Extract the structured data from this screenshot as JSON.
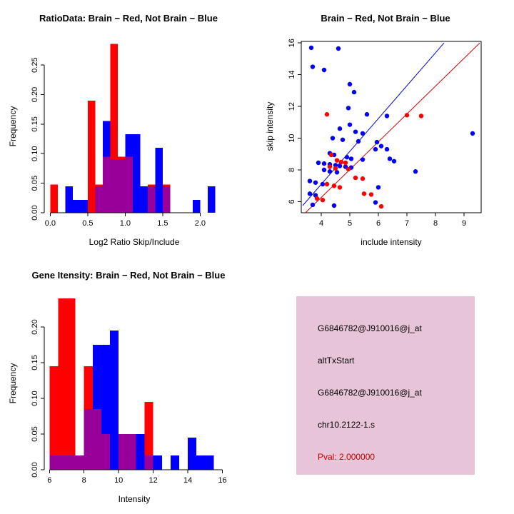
{
  "figure": {
    "background": "#ffffff",
    "colors": {
      "red": "#FF0000",
      "blue": "#0000FF",
      "overlap": "#990099"
    }
  },
  "chart_data": [
    {
      "type": "bar",
      "title": "RatioData: Brain − Red, Not Brain − Blue",
      "xlabel": "Log2 Ratio Skip/Include",
      "ylabel": "Frequency",
      "xlim": [
        -0.08,
        2.32
      ],
      "ylim": [
        0,
        0.29
      ],
      "bin_width": 0.1,
      "grid": false,
      "legend": "none",
      "colors": {
        "red": "#FF0000",
        "blue": "#0000FF",
        "overlap": "#990099"
      },
      "xticks": [
        {
          "v": 0.0,
          "t": "0.0"
        },
        {
          "v": 0.5,
          "t": "0.5"
        },
        {
          "v": 1.0,
          "t": "1.0"
        },
        {
          "v": 1.5,
          "t": "1.5"
        },
        {
          "v": 2.0,
          "t": "2.0"
        }
      ],
      "yticks": [
        {
          "v": 0.0,
          "t": "0.00"
        },
        {
          "v": 0.05,
          "t": "0.05"
        },
        {
          "v": 0.1,
          "t": "0.10"
        },
        {
          "v": 0.15,
          "t": "0.15"
        },
        {
          "v": 0.2,
          "t": "0.20"
        },
        {
          "v": 0.25,
          "t": "0.25"
        }
      ],
      "series_names": [
        "Brain (red)",
        "Not Brain (blue)"
      ],
      "bins": [
        {
          "x0": 0.0,
          "red": 0.048,
          "blue": 0
        },
        {
          "x0": 0.2,
          "red": 0,
          "blue": 0.045
        },
        {
          "x0": 0.3,
          "red": 0,
          "blue": 0.022
        },
        {
          "x0": 0.4,
          "red": 0,
          "blue": 0.022
        },
        {
          "x0": 0.5,
          "red": 0.19,
          "blue": 0
        },
        {
          "x0": 0.6,
          "red": 0.048,
          "blue": 0.045
        },
        {
          "x0": 0.7,
          "red": 0.095,
          "blue": 0.155
        },
        {
          "x0": 0.8,
          "red": 0.286,
          "blue": 0.09
        },
        {
          "x0": 0.9,
          "red": 0.095,
          "blue": 0.09
        },
        {
          "x0": 1.0,
          "red": 0.095,
          "blue": 0.133
        },
        {
          "x0": 1.1,
          "red": 0,
          "blue": 0.133
        },
        {
          "x0": 1.2,
          "red": 0,
          "blue": 0.045
        },
        {
          "x0": 1.3,
          "red": 0.048,
          "blue": 0.045
        },
        {
          "x0": 1.4,
          "red": 0,
          "blue": 0.11
        },
        {
          "x0": 1.5,
          "red": 0.048,
          "blue": 0.045
        },
        {
          "x0": 1.9,
          "red": 0,
          "blue": 0.022
        },
        {
          "x0": 2.1,
          "red": 0,
          "blue": 0.045
        }
      ]
    },
    {
      "type": "scatter",
      "title": "Brain − Red, Not Brain − Blue",
      "xlabel": "include intensity",
      "ylabel": "skip intensity",
      "xlim": [
        3.3,
        9.6
      ],
      "ylim": [
        5.3,
        16.1
      ],
      "grid": false,
      "legend": "none",
      "box": true,
      "xticks": [
        {
          "v": 4,
          "t": "4"
        },
        {
          "v": 5,
          "t": "5"
        },
        {
          "v": 6,
          "t": "6"
        },
        {
          "v": 7,
          "t": "7"
        },
        {
          "v": 8,
          "t": "8"
        },
        {
          "v": 9,
          "t": "9"
        }
      ],
      "yticks": [
        {
          "v": 6,
          "t": "6"
        },
        {
          "v": 8,
          "t": "8"
        },
        {
          "v": 10,
          "t": "10"
        },
        {
          "v": 12,
          "t": "12"
        },
        {
          "v": 14,
          "t": "14"
        },
        {
          "v": 16,
          "t": "16"
        }
      ],
      "series": [
        {
          "name": "Not Brain (blue)",
          "color": "#0000FF",
          "points": [
            [
              3.65,
              15.7
            ],
            [
              4.6,
              15.65
            ],
            [
              3.7,
              14.5
            ],
            [
              4.1,
              14.3
            ],
            [
              5.0,
              13.4
            ],
            [
              5.15,
              12.9
            ],
            [
              4.95,
              11.9
            ],
            [
              5.6,
              11.5
            ],
            [
              6.3,
              11.4
            ],
            [
              5.0,
              10.85
            ],
            [
              4.65,
              10.6
            ],
            [
              5.2,
              10.4
            ],
            [
              5.45,
              10.3
            ],
            [
              9.3,
              10.3
            ],
            [
              4.4,
              10.0
            ],
            [
              4.75,
              9.9
            ],
            [
              5.3,
              9.8
            ],
            [
              5.95,
              9.75
            ],
            [
              6.1,
              9.5
            ],
            [
              5.9,
              9.3
            ],
            [
              6.3,
              9.3
            ],
            [
              4.3,
              9.05
            ],
            [
              4.45,
              8.95
            ],
            [
              4.9,
              8.8
            ],
            [
              5.05,
              8.7
            ],
            [
              5.45,
              8.65
            ],
            [
              6.4,
              8.7
            ],
            [
              6.55,
              8.55
            ],
            [
              3.9,
              8.45
            ],
            [
              4.1,
              8.4
            ],
            [
              4.3,
              8.35
            ],
            [
              4.5,
              8.3
            ],
            [
              4.65,
              8.25
            ],
            [
              4.85,
              8.2
            ],
            [
              5.05,
              8.15
            ],
            [
              4.1,
              8.0
            ],
            [
              4.3,
              7.9
            ],
            [
              4.55,
              7.85
            ],
            [
              7.3,
              7.9
            ],
            [
              3.6,
              7.3
            ],
            [
              3.8,
              7.2
            ],
            [
              4.05,
              7.1
            ],
            [
              6.0,
              6.9
            ],
            [
              3.6,
              6.5
            ],
            [
              3.8,
              6.4
            ],
            [
              5.9,
              5.95
            ],
            [
              3.7,
              5.8
            ],
            [
              4.45,
              5.75
            ]
          ]
        },
        {
          "name": "Brain (red)",
          "color": "#FF0000",
          "points": [
            [
              4.2,
              11.5
            ],
            [
              7.0,
              11.45
            ],
            [
              7.5,
              11.4
            ],
            [
              4.35,
              8.95
            ],
            [
              4.55,
              8.6
            ],
            [
              4.7,
              8.5
            ],
            [
              4.85,
              8.45
            ],
            [
              4.3,
              8.2
            ],
            [
              4.5,
              8.1
            ],
            [
              4.95,
              8.05
            ],
            [
              5.2,
              7.5
            ],
            [
              5.45,
              7.45
            ],
            [
              4.2,
              7.1
            ],
            [
              4.45,
              7.0
            ],
            [
              4.65,
              6.9
            ],
            [
              5.5,
              6.5
            ],
            [
              5.75,
              6.45
            ],
            [
              3.85,
              6.2
            ],
            [
              4.05,
              6.1
            ],
            [
              6.1,
              5.7
            ]
          ]
        }
      ],
      "lines": [
        {
          "name": "not-brain-fit-line",
          "color": "#0000CD",
          "x1": 3.35,
          "y1": 5.75,
          "x2": 8.3,
          "y2": 16.0
        },
        {
          "name": "brain-fit-line",
          "color": "#CD0000",
          "x1": 3.45,
          "y1": 5.3,
          "x2": 9.55,
          "y2": 16.0
        }
      ]
    },
    {
      "type": "bar",
      "title": "Gene Itensity: Brain − Red, Not Brain − Blue",
      "xlabel": "Intensity",
      "ylabel": "Frequency",
      "xlim": [
        5.7,
        16.1
      ],
      "ylim": [
        0,
        0.24
      ],
      "bin_width": 0.5,
      "grid": false,
      "legend": "none",
      "colors": {
        "red": "#FF0000",
        "blue": "#0000FF",
        "overlap": "#990099"
      },
      "xticks": [
        {
          "v": 6,
          "t": "6"
        },
        {
          "v": 8,
          "t": "8"
        },
        {
          "v": 10,
          "t": "10"
        },
        {
          "v": 12,
          "t": "12"
        },
        {
          "v": 14,
          "t": "14"
        },
        {
          "v": 16,
          "t": "16"
        }
      ],
      "yticks": [
        {
          "v": 0.0,
          "t": "0.00"
        },
        {
          "v": 0.05,
          "t": "0.05"
        },
        {
          "v": 0.1,
          "t": "0.10"
        },
        {
          "v": 0.15,
          "t": "0.15"
        },
        {
          "v": 0.2,
          "t": "0.20"
        }
      ],
      "series_names": [
        "Brain (red)",
        "Not Brain (blue)"
      ],
      "bins": [
        {
          "x0": 6.0,
          "red": 0.145,
          "blue": 0.02
        },
        {
          "x0": 6.5,
          "red": 0.24,
          "blue": 0.02
        },
        {
          "x0": 7.0,
          "red": 0.24,
          "blue": 0.02
        },
        {
          "x0": 7.5,
          "red": 0.02,
          "blue": 0.02
        },
        {
          "x0": 8.0,
          "red": 0.145,
          "blue": 0.085
        },
        {
          "x0": 8.5,
          "red": 0.085,
          "blue": 0.175
        },
        {
          "x0": 9.0,
          "red": 0.05,
          "blue": 0.175
        },
        {
          "x0": 9.5,
          "red": 0,
          "blue": 0.195
        },
        {
          "x0": 10.0,
          "red": 0.05,
          "blue": 0.05
        },
        {
          "x0": 10.5,
          "red": 0.05,
          "blue": 0.05
        },
        {
          "x0": 11.0,
          "red": 0,
          "blue": 0.05
        },
        {
          "x0": 11.5,
          "red": 0.095,
          "blue": 0.02
        },
        {
          "x0": 12.0,
          "red": 0,
          "blue": 0.02
        },
        {
          "x0": 13.0,
          "red": 0,
          "blue": 0.02
        },
        {
          "x0": 14.0,
          "red": 0,
          "blue": 0.045
        },
        {
          "x0": 14.5,
          "red": 0,
          "blue": 0.02
        },
        {
          "x0": 15.0,
          "red": 0,
          "blue": 0.02
        }
      ]
    }
  ],
  "info_panel": {
    "bg": "#E8C4D8",
    "lines": [
      {
        "text": "G6846782@J910016@j_at",
        "color": "#000000"
      },
      {
        "text": "altTxStart",
        "color": "#000000"
      },
      {
        "text": "G6846782@J910016@j_at",
        "color": "#000000"
      },
      {
        "text": "chr10.2122-1.s",
        "color": "#000000"
      },
      {
        "text": "Pval: 2.000000",
        "color": "#C00000"
      }
    ]
  }
}
